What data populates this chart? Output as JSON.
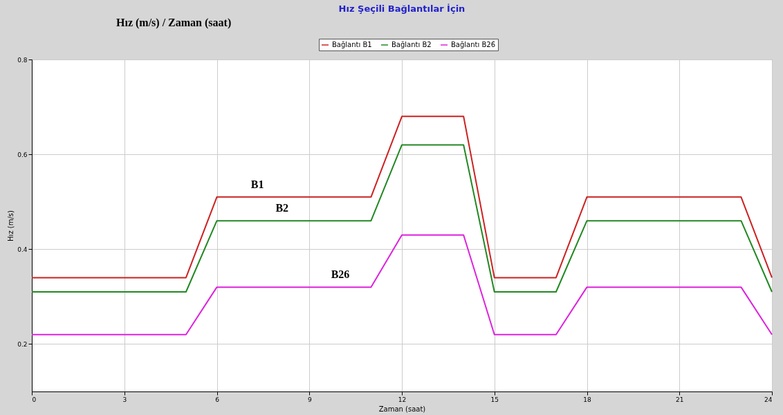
{
  "chart_data": {
    "type": "line",
    "title": "Hız Şeçili Bağlantılar İçin",
    "subtitle": "Hız (m/s) / Zaman (saat)",
    "xlabel": "Zaman (saat)",
    "ylabel": "Hız (m/s)",
    "x": [
      0,
      5,
      6,
      11,
      12,
      14,
      15,
      17,
      18,
      23,
      24
    ],
    "series": [
      {
        "name": "Bağlantı B1",
        "color": "#cc2222",
        "values": [
          0.34,
          0.34,
          0.51,
          0.51,
          0.68,
          0.68,
          0.34,
          0.34,
          0.51,
          0.51,
          0.34
        ]
      },
      {
        "name": "Bağlantı B2",
        "color": "#228822",
        "values": [
          0.31,
          0.31,
          0.46,
          0.46,
          0.62,
          0.62,
          0.31,
          0.31,
          0.46,
          0.46,
          0.31
        ]
      },
      {
        "name": "Bağlantı B26",
        "color": "#dd22dd",
        "values": [
          0.22,
          0.22,
          0.32,
          0.32,
          0.43,
          0.43,
          0.22,
          0.22,
          0.32,
          0.32,
          0.22
        ]
      }
    ],
    "annotations": [
      {
        "text": "B1",
        "x": 6.7,
        "y": 0.51
      },
      {
        "text": "B2",
        "x": 7.5,
        "y": 0.46
      },
      {
        "text": "B26",
        "x": 9.3,
        "y": 0.32
      }
    ],
    "xlim": [
      0,
      24
    ],
    "xticks": [
      0,
      3,
      6,
      9,
      12,
      15,
      18,
      21,
      24
    ],
    "ylim": [
      0.1,
      0.8
    ],
    "yticks": [
      0.2,
      0.4,
      0.6,
      0.8
    ],
    "grid": true,
    "legend": "top",
    "marker": "none",
    "line_style": "solid"
  }
}
